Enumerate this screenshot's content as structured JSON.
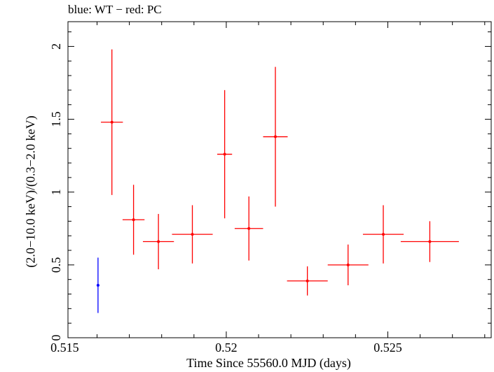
{
  "chart_data": {
    "type": "scatter",
    "title": "blue: WT − red: PC",
    "xlabel": "Time Since 55560.0 MJD (days)",
    "ylabel": "(2.0−10.0 keV)/(0.3−2.0 keV)",
    "xlim": [
      0.5151,
      0.5282
    ],
    "ylim": [
      0,
      2.17
    ],
    "xticks": [
      0.515,
      0.52,
      0.525
    ],
    "xtick_labels": [
      "0.515",
      "0.52",
      "0.525"
    ],
    "yticks": [
      0,
      0.5,
      1,
      1.5,
      2
    ],
    "ytick_labels": [
      "0",
      "0.5",
      "1",
      "1.5",
      "2"
    ],
    "grid": false,
    "series": [
      {
        "name": "WT",
        "color": "#0000ff",
        "points": [
          {
            "x": 0.51603,
            "xerr": 4e-05,
            "y": 0.36,
            "yerr_low": 0.19,
            "yerr_high": 0.19
          }
        ]
      },
      {
        "name": "PC",
        "color": "#ff0000",
        "points": [
          {
            "x": 0.51646,
            "xerr": 0.00034,
            "y": 1.48,
            "yerr_low": 0.5,
            "yerr_high": 0.5
          },
          {
            "x": 0.51713,
            "xerr": 0.00034,
            "y": 0.81,
            "yerr_low": 0.24,
            "yerr_high": 0.24
          },
          {
            "x": 0.5179,
            "xerr": 0.00048,
            "y": 0.66,
            "yerr_low": 0.19,
            "yerr_high": 0.19
          },
          {
            "x": 0.51895,
            "xerr": 0.00063,
            "y": 0.71,
            "yerr_low": 0.2,
            "yerr_high": 0.2
          },
          {
            "x": 0.51995,
            "xerr": 0.00023,
            "y": 1.26,
            "yerr_low": 0.44,
            "yerr_high": 0.44
          },
          {
            "x": 0.5207,
            "xerr": 0.00044,
            "y": 0.75,
            "yerr_low": 0.22,
            "yerr_high": 0.22
          },
          {
            "x": 0.52152,
            "xerr": 0.00038,
            "y": 1.38,
            "yerr_low": 0.48,
            "yerr_high": 0.48
          },
          {
            "x": 0.52251,
            "xerr": 0.00063,
            "y": 0.39,
            "yerr_low": 0.1,
            "yerr_high": 0.1
          },
          {
            "x": 0.52377,
            "xerr": 0.00063,
            "y": 0.5,
            "yerr_low": 0.14,
            "yerr_high": 0.14
          },
          {
            "x": 0.52486,
            "xerr": 0.00063,
            "y": 0.71,
            "yerr_low": 0.2,
            "yerr_high": 0.2
          },
          {
            "x": 0.5263,
            "xerr": 0.0009,
            "y": 0.66,
            "yerr_low": 0.14,
            "yerr_high": 0.14
          }
        ]
      }
    ]
  }
}
